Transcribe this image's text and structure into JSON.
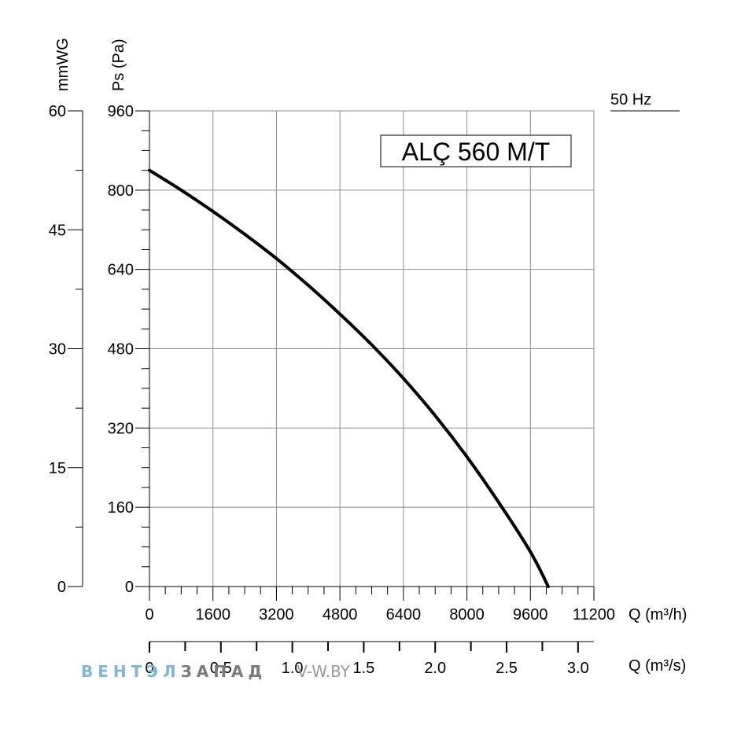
{
  "chart_data": {
    "type": "line",
    "title": "ALÇ 560 M/T",
    "frequency_label": "50 Hz",
    "xlabel": "Q (m³/h)",
    "x2label": "Q (m³/s)",
    "ylabel": "Ps (Pa)",
    "y2label": "mmWG",
    "xlim": [
      0,
      11200
    ],
    "ylim": [
      0,
      960
    ],
    "x2lim": [
      0,
      3.111
    ],
    "y2lim": [
      0,
      60
    ],
    "x_ticks": [
      "0",
      "1600",
      "3200",
      "4800",
      "6400",
      "8000",
      "9600",
      "11200"
    ],
    "x2_ticks": [
      "0",
      "0.5",
      "1.0",
      "1.5",
      "2.0",
      "2.5",
      "3.0"
    ],
    "y_ticks": [
      "0",
      "160",
      "320",
      "480",
      "640",
      "800",
      "960"
    ],
    "y2_ticks": [
      "0",
      "15",
      "30",
      "45",
      "60"
    ],
    "grid": true,
    "series": [
      {
        "x": [
          0,
          800,
          1600,
          2400,
          3200,
          4000,
          4800,
          5600,
          6400,
          7200,
          8000,
          8800,
          9600,
          10050
        ],
        "values": [
          840,
          800,
          757,
          711,
          662,
          608,
          550,
          488,
          420,
          345,
          262,
          170,
          70,
          0
        ]
      }
    ]
  },
  "watermark": {
    "part1": "ВЕНТ",
    "part2": "ЭЛ",
    "part3": "ЗАПАД",
    "site": "V-W.BY"
  },
  "colors": {
    "curve": "#000000",
    "grid": "#8c8c8c",
    "watermark_blue": "#7fb6d8",
    "watermark_gray": "#7a7a7a"
  }
}
